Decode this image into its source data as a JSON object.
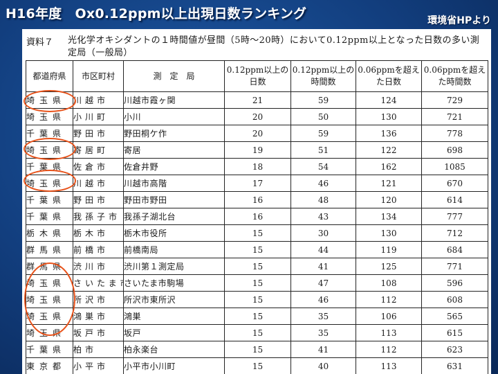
{
  "slide": {
    "title": "H16年度　Ox0.12ppm以上出現日数ランキング",
    "source": "環境省HPより"
  },
  "document": {
    "label": "資料７",
    "description": "光化学オキシダントの１時間値が昼間（5時～20時）において0.12ppm以上となった日数の多い測定局（一般局）"
  },
  "table": {
    "headers": {
      "prefecture": "都道府県",
      "city": "市区町村",
      "station": "測　定　局",
      "days_012": "0.12ppm以上の日数",
      "hours_012": "0.12ppm以上の時間数",
      "days_006": "0.06ppmを超えた日数",
      "hours_006": "0.06ppmを超えた時間数"
    },
    "rows": [
      {
        "prefecture": "埼玉県",
        "city": "川越市",
        "station": "川越市霞ヶ関",
        "days_012": "21",
        "hours_012": "59",
        "days_006": "124",
        "hours_006": "729"
      },
      {
        "prefecture": "埼玉県",
        "city": "小川町",
        "station": "小川",
        "days_012": "20",
        "hours_012": "50",
        "days_006": "130",
        "hours_006": "721"
      },
      {
        "prefecture": "千葉県",
        "city": "野田市",
        "station": "野田桐ケ作",
        "days_012": "20",
        "hours_012": "59",
        "days_006": "136",
        "hours_006": "778"
      },
      {
        "prefecture": "埼玉県",
        "city": "寄居町",
        "station": "寄居",
        "days_012": "19",
        "hours_012": "51",
        "days_006": "122",
        "hours_006": "698"
      },
      {
        "prefecture": "千葉県",
        "city": "佐倉市",
        "station": "佐倉井野",
        "days_012": "18",
        "hours_012": "54",
        "days_006": "162",
        "hours_006": "1085"
      },
      {
        "prefecture": "埼玉県",
        "city": "川越市",
        "station": "川越市高階",
        "days_012": "17",
        "hours_012": "46",
        "days_006": "121",
        "hours_006": "670"
      },
      {
        "prefecture": "千葉県",
        "city": "野田市",
        "station": "野田市野田",
        "days_012": "16",
        "hours_012": "48",
        "days_006": "120",
        "hours_006": "614"
      },
      {
        "prefecture": "千葉県",
        "city": "我孫子市",
        "station": "我孫子湖北台",
        "days_012": "16",
        "hours_012": "43",
        "days_006": "134",
        "hours_006": "777"
      },
      {
        "prefecture": "栃木県",
        "city": "栃木市",
        "station": "栃木市役所",
        "days_012": "15",
        "hours_012": "30",
        "days_006": "130",
        "hours_006": "712"
      },
      {
        "prefecture": "群馬県",
        "city": "前橋市",
        "station": "前橋南局",
        "days_012": "15",
        "hours_012": "44",
        "days_006": "119",
        "hours_006": "684"
      },
      {
        "prefecture": "群馬県",
        "city": "渋川市",
        "station": "渋川第１測定局",
        "days_012": "15",
        "hours_012": "41",
        "days_006": "125",
        "hours_006": "771"
      },
      {
        "prefecture": "埼玉県",
        "city": "さいたま市",
        "station": "さいたま市駒場",
        "days_012": "15",
        "hours_012": "47",
        "days_006": "108",
        "hours_006": "596"
      },
      {
        "prefecture": "埼玉県",
        "city": "所沢市",
        "station": "所沢市東所沢",
        "days_012": "15",
        "hours_012": "46",
        "days_006": "112",
        "hours_006": "608"
      },
      {
        "prefecture": "埼玉県",
        "city": "鴻巣市",
        "station": "鴻巣",
        "days_012": "15",
        "hours_012": "35",
        "days_006": "106",
        "hours_006": "565"
      },
      {
        "prefecture": "埼玉県",
        "city": "坂戸市",
        "station": "坂戸",
        "days_012": "15",
        "hours_012": "35",
        "days_006": "113",
        "hours_006": "615"
      },
      {
        "prefecture": "千葉県",
        "city": "柏市",
        "station": "柏永楽台",
        "days_012": "15",
        "hours_012": "41",
        "days_006": "112",
        "hours_006": "623"
      },
      {
        "prefecture": "東京都",
        "city": "小平市",
        "station": "小平市小川町",
        "days_012": "15",
        "hours_012": "40",
        "days_006": "113",
        "hours_006": "631"
      }
    ]
  },
  "annotations": {
    "highlight_color": "#e8531b"
  }
}
